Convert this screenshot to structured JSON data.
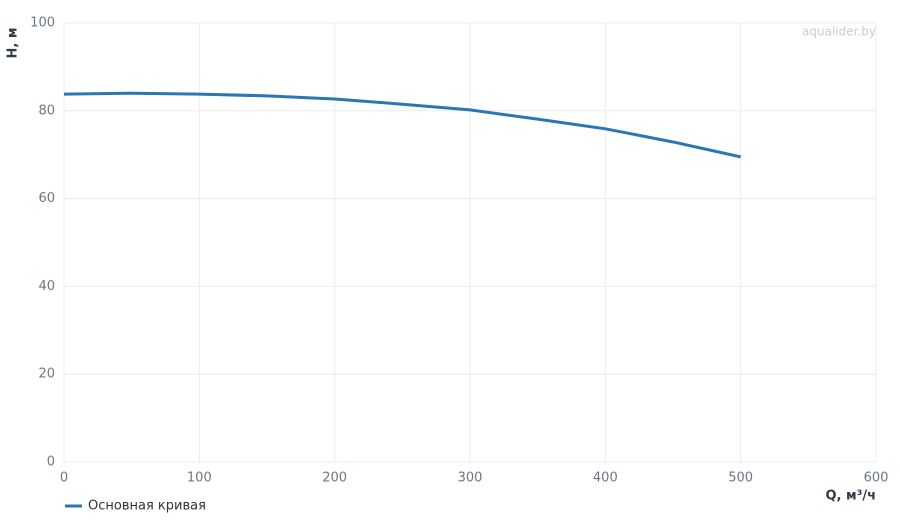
{
  "chart_data": {
    "type": "line",
    "watermark": "aqualider.by",
    "x_label": "Q, м³/ч",
    "y_label": "H, м",
    "x": [
      0,
      50,
      100,
      150,
      200,
      250,
      300,
      350,
      400,
      450,
      500
    ],
    "series": [
      {
        "name": "Основная кривая",
        "color": "#2a77b4",
        "values": [
          83.8,
          84.0,
          83.8,
          83.4,
          82.7,
          81.5,
          80.2,
          78.1,
          75.9,
          72.9,
          69.5
        ]
      }
    ],
    "xlim": [
      0,
      600
    ],
    "xticks": [
      0,
      100,
      200,
      300,
      400,
      500,
      600
    ],
    "ylim": [
      0,
      100
    ],
    "yticks": [
      0,
      20,
      40,
      60,
      80,
      100
    ],
    "grid": true,
    "legend": "bottom-left"
  }
}
